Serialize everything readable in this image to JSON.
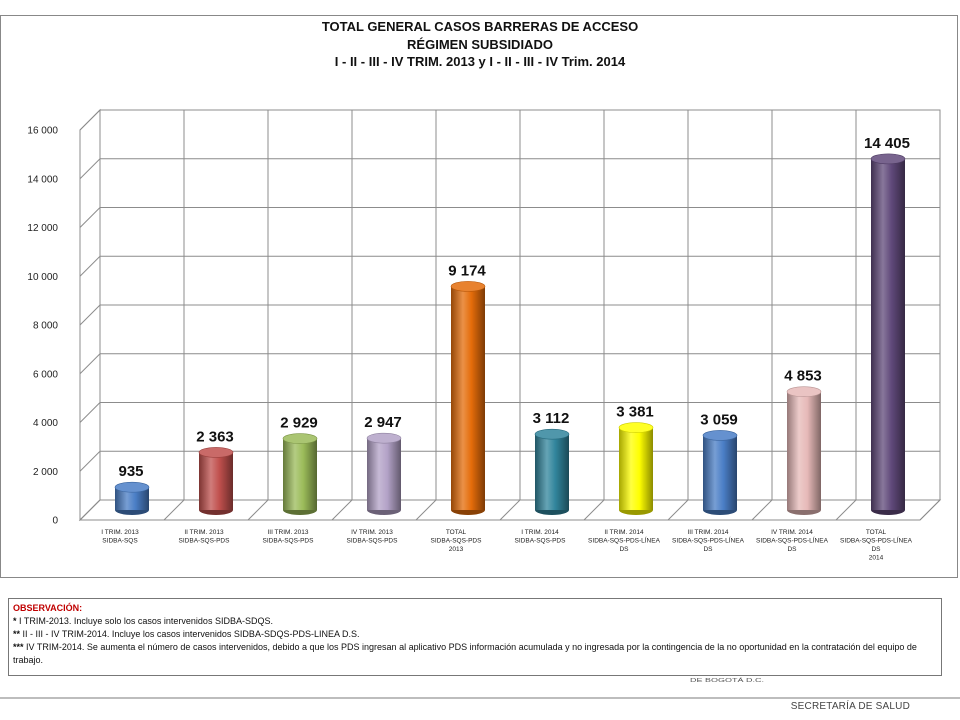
{
  "chart_data": {
    "type": "bar",
    "title_lines": [
      "TOTAL GENERAL CASOS BARRERAS DE ACCESO",
      "RÉGIMEN SUBSIDIADO",
      "I - II - III - IV TRIM. 2013  y I - II - III - IV Trim. 2014"
    ],
    "categories": [
      [
        "I TRIM. 2013",
        "SIDBA-SQS"
      ],
      [
        "II TRIM. 2013",
        "SIDBA-SQS-PDS"
      ],
      [
        "III TRIM. 2013",
        "SIDBA-SQS-PDS"
      ],
      [
        "IV TRIM. 2013",
        "SIDBA-SQS-PDS"
      ],
      [
        "TOTAL",
        "SIDBA-SQS-PDS",
        "2013"
      ],
      [
        "I TRIM. 2014",
        "SIDBA-SQS-PDS"
      ],
      [
        "II TRIM. 2014",
        "SIDBA-SQS-PDS-LÍNEA",
        "DS"
      ],
      [
        "III TRIM. 2014",
        "SIDBA-SQS-PDS-LÍNEA",
        "DS"
      ],
      [
        "IV TRIM. 2014",
        "SIDBA-SQS-PDS-LÍNEA",
        "DS"
      ],
      [
        "TOTAL",
        "SIDBA-SQS-PDS-LÍNEA",
        "DS",
        "2014"
      ]
    ],
    "values": [
      935,
      2363,
      2929,
      2947,
      9174,
      3112,
      3381,
      3059,
      4853,
      14405
    ],
    "value_labels": [
      "935",
      "2 363",
      "2 929",
      "2 947",
      "9 174",
      "3 112",
      "3 381",
      "3 059",
      "4 853",
      "14 405"
    ],
    "colors": [
      "#4a7ec6",
      "#c0504d",
      "#9bbb59",
      "#b3a2c7",
      "#e46c0a",
      "#31859c",
      "#ffff00",
      "#4a7ec6",
      "#e6b9b8",
      "#60497a"
    ],
    "yticks": [
      0,
      2000,
      4000,
      6000,
      8000,
      10000,
      12000,
      14000,
      16000
    ],
    "ytick_labels": [
      "0",
      "2 000",
      "4 000",
      "6 000",
      "8 000",
      "10 000",
      "12 000",
      "14 000",
      "16 000"
    ],
    "ylim": [
      0,
      16000
    ],
    "grid": true,
    "style": "3d-cylinder"
  },
  "observations": {
    "title": "OBSERVACIÓN:",
    "lines": [
      {
        "marker": "*",
        "text": " I TRIM-2013. Incluye solo los casos intervenidos  SIDBA-SDQS."
      },
      {
        "marker": "**",
        "text": " II - III - IV TRIM-2014. Incluye los casos intervenidos SIDBA-SDQS-PDS-LINEA D.S."
      },
      {
        "marker": "***",
        "text": "  IV TRIM-2014. Se aumenta el número de casos intervenidos, debido a que los PDS ingresan al aplicativo PDS información acumulada y no ingresada por la contingencia  de la no oportunidad  en la contratación  del equipo de trabajo."
      }
    ]
  },
  "footer": {
    "department": "SECRETARÍA DE SALUD",
    "obscured_text": "DE BOGOTÁ D.C."
  }
}
